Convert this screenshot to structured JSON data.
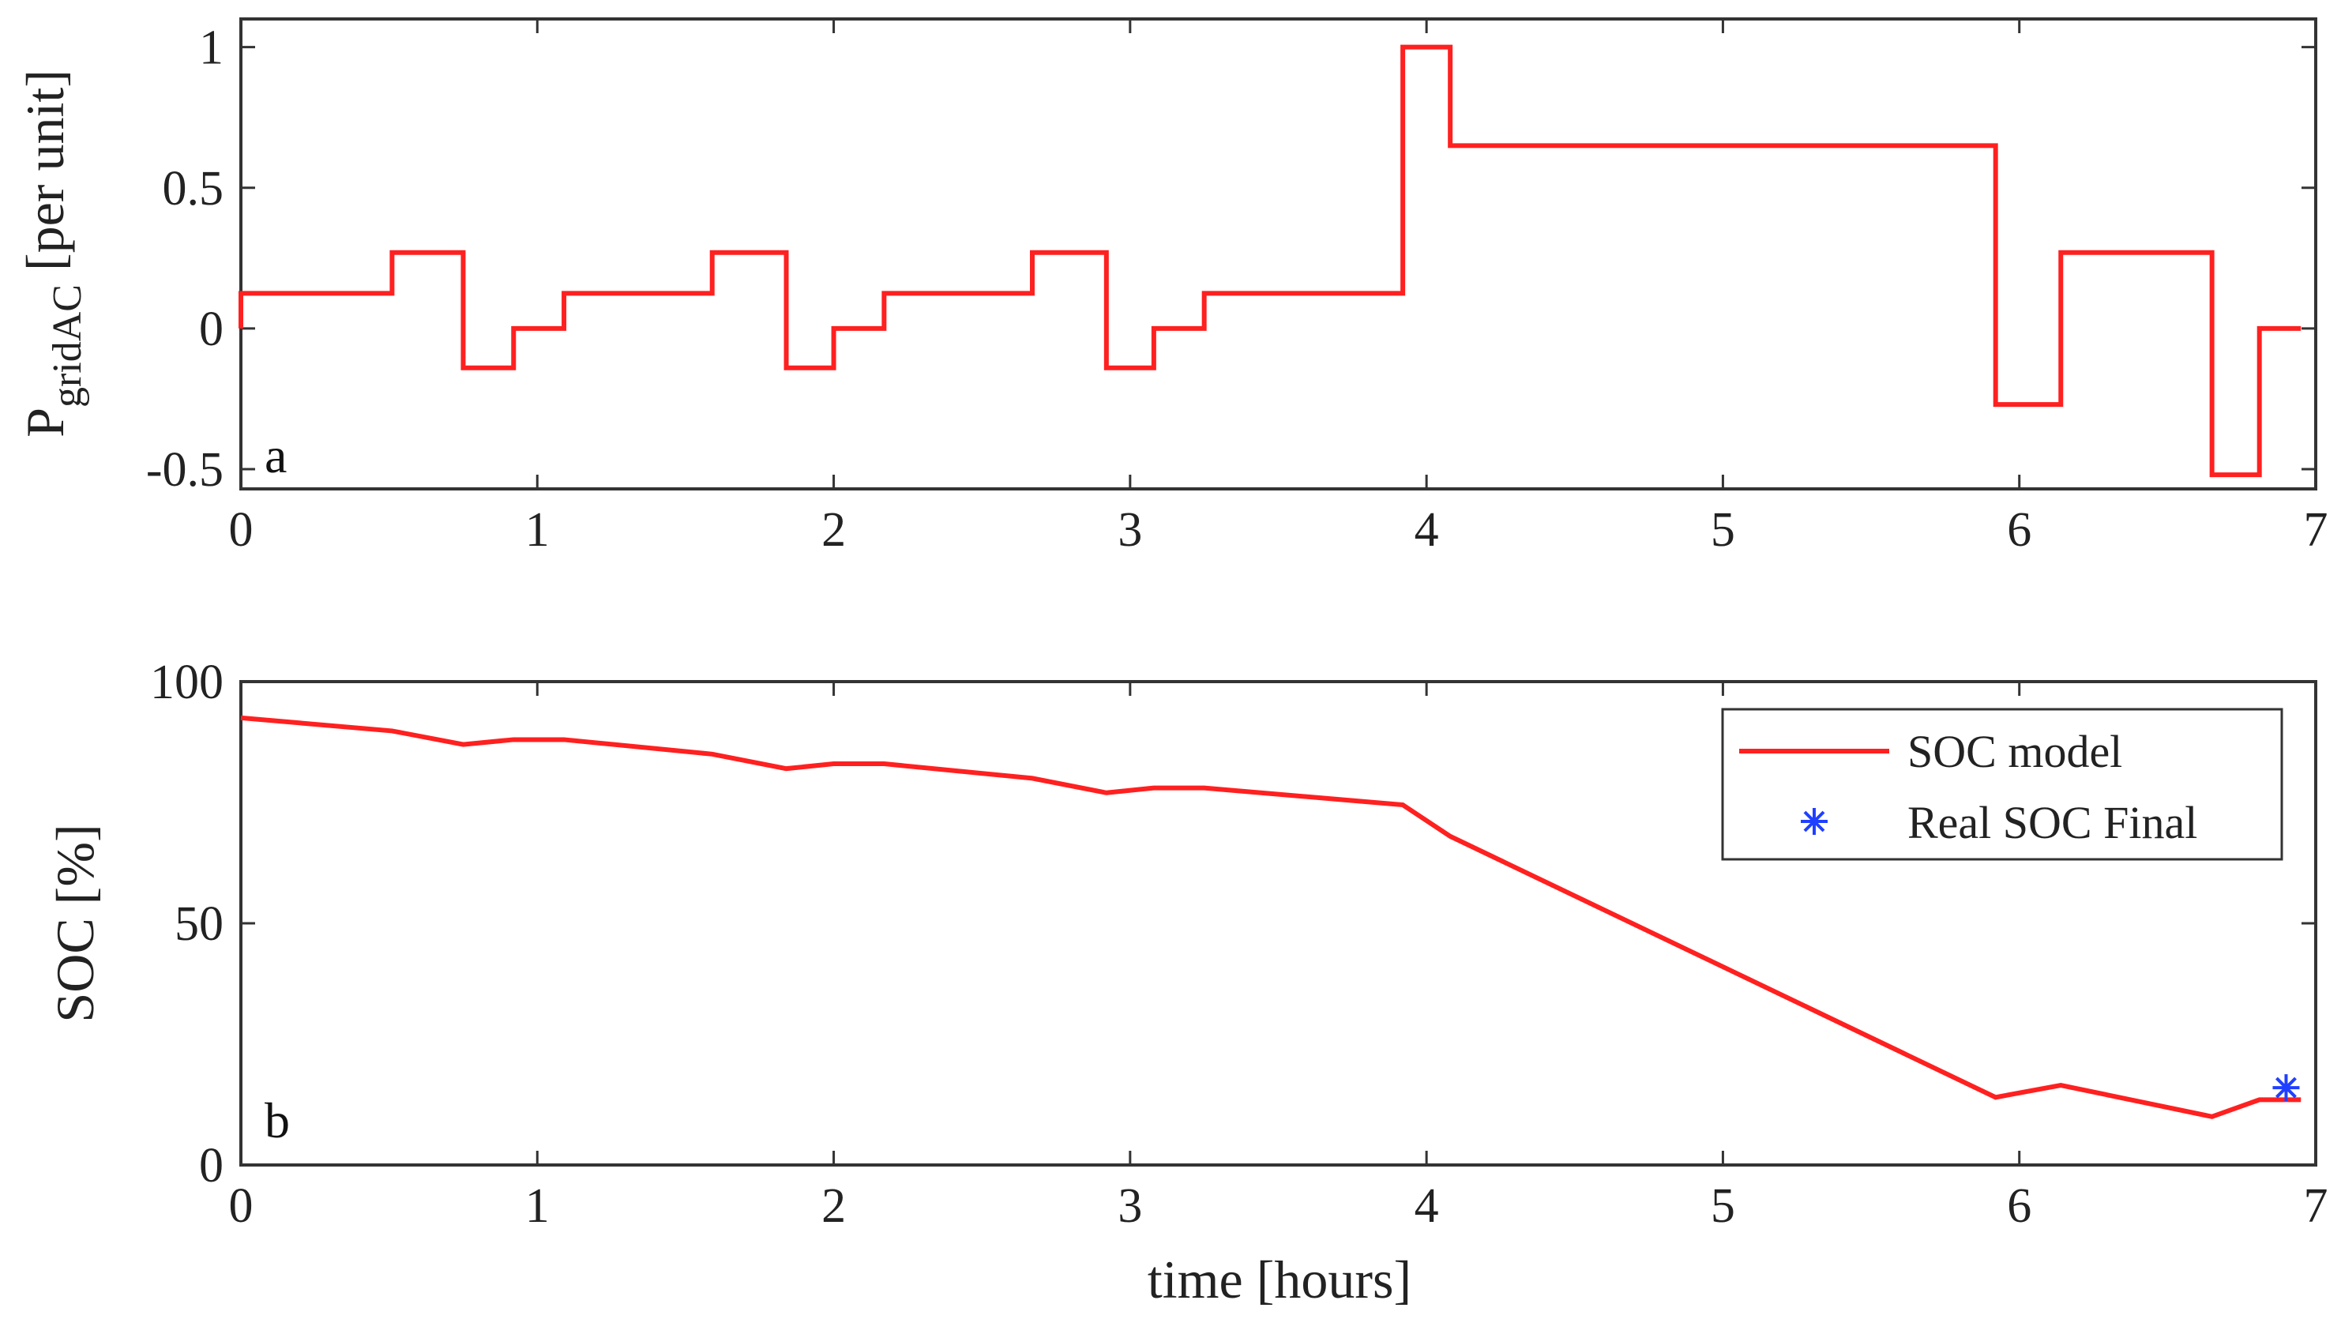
{
  "chart_data": [
    {
      "type": "line",
      "panel_label": "a",
      "ylabel_main": "P",
      "ylabel_sub": "gridAC",
      "ylabel_tail": " [per unit]",
      "xlabel": "",
      "xlim": [
        0,
        7
      ],
      "ylim": [
        -0.57,
        1.1
      ],
      "xticks": [
        0,
        1,
        2,
        3,
        4,
        5,
        6,
        7
      ],
      "xtick_labels": [
        "0",
        "1",
        "2",
        "3",
        "4",
        "5",
        "6",
        "7"
      ],
      "yticks": [
        -0.5,
        0,
        0.5,
        1
      ],
      "ytick_labels": [
        "-0.5",
        "0",
        "0.5",
        "1"
      ],
      "grid": false,
      "series": [
        {
          "color": "#ff2020",
          "step": true,
          "x": [
            0,
            0.51,
            0.75,
            0.92,
            1.09,
            1.59,
            1.84,
            2.0,
            2.17,
            2.67,
            2.92,
            3.08,
            3.25,
            3.92,
            4.08,
            5.92,
            6.14,
            6.65,
            6.81,
            6.95
          ],
          "y": [
            0.125,
            0.27,
            -0.14,
            0.0,
            0.125,
            0.27,
            -0.14,
            0.0,
            0.125,
            0.27,
            -0.14,
            0.0,
            0.125,
            1.0,
            0.65,
            -0.27,
            0.27,
            -0.52,
            0.0,
            0.0
          ]
        }
      ]
    },
    {
      "type": "line",
      "panel_label": "b",
      "ylabel": "SOC [%]",
      "xlabel": "time [hours]",
      "xlim": [
        0,
        7
      ],
      "ylim": [
        0,
        100
      ],
      "xticks": [
        0,
        1,
        2,
        3,
        4,
        5,
        6,
        7
      ],
      "xtick_labels": [
        "0",
        "1",
        "2",
        "3",
        "4",
        "5",
        "6",
        "7"
      ],
      "yticks": [
        0,
        50,
        100
      ],
      "ytick_labels": [
        "0",
        "50",
        "100"
      ],
      "grid": false,
      "legend_position": "top-right",
      "series": [
        {
          "name": "SOC model",
          "color": "#ff2020",
          "marker": "none",
          "x": [
            0,
            0.51,
            0.75,
            0.92,
            1.09,
            1.59,
            1.84,
            2.0,
            2.17,
            2.67,
            2.92,
            3.08,
            3.25,
            3.92,
            4.08,
            5.92,
            6.14,
            6.65,
            6.81,
            6.95
          ],
          "y": [
            92.5,
            89.8,
            87.0,
            88.0,
            88.0,
            85.0,
            82.0,
            83.0,
            83.0,
            80.0,
            77.0,
            78.0,
            78.0,
            74.5,
            68.0,
            14.0,
            16.5,
            10.0,
            13.5,
            13.5
          ]
        },
        {
          "name": "Real SOC Final",
          "color": "#2040ff",
          "marker": "asterisk",
          "x": [
            6.9
          ],
          "y": [
            16
          ]
        }
      ]
    }
  ]
}
